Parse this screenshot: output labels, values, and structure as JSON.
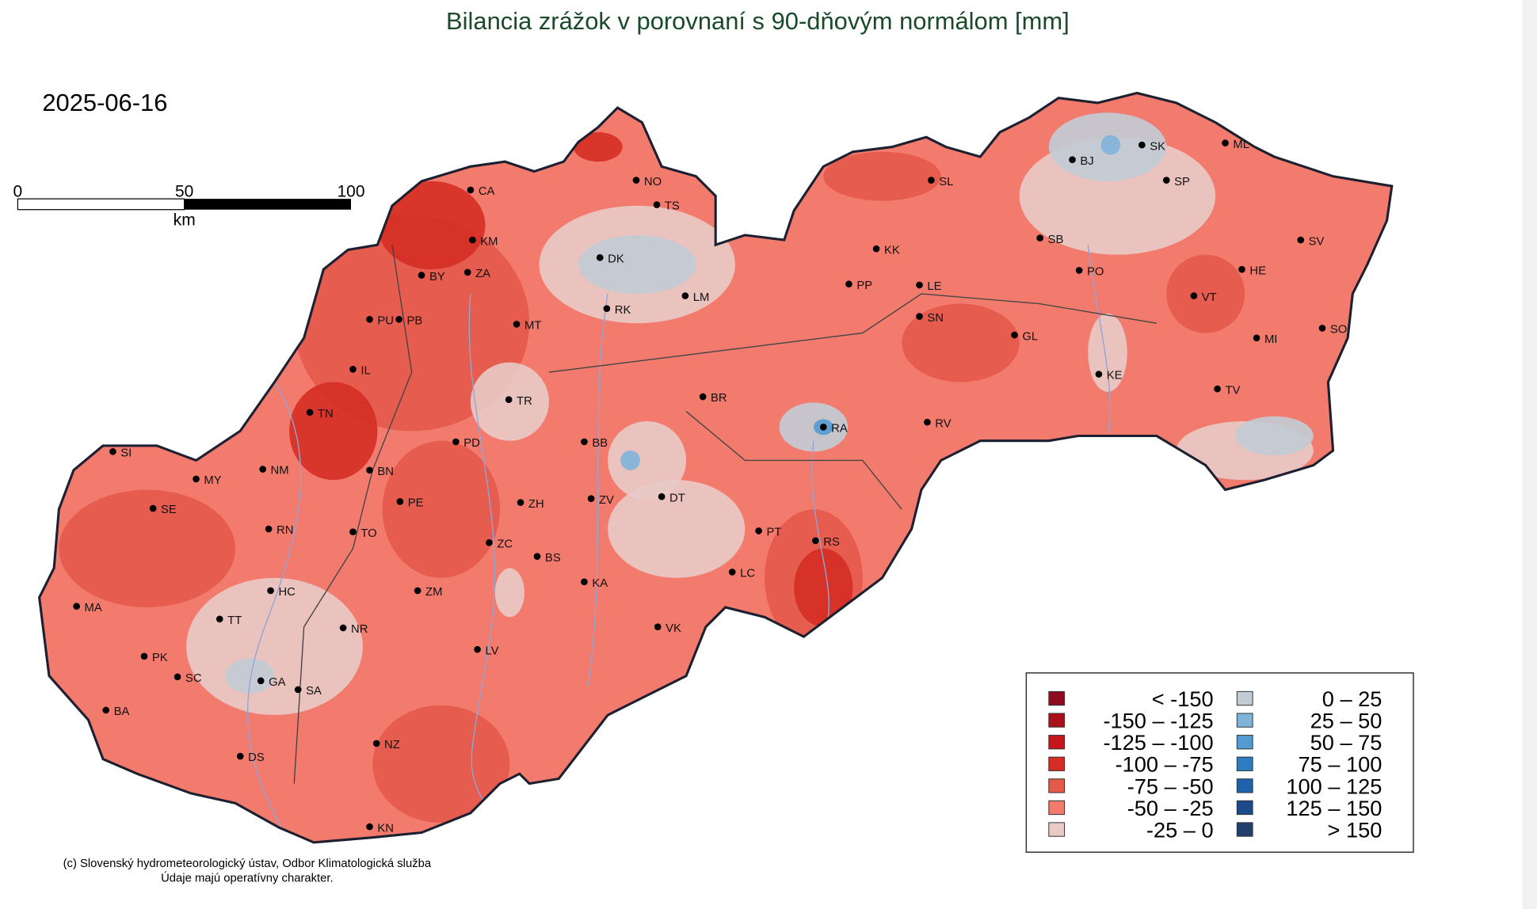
{
  "title": "Bilancia zrážok v porovnaní s 90-dňovým normálom [mm]",
  "date": "2025-06-16",
  "scale_bar": {
    "labels": [
      "0",
      "50",
      "100"
    ],
    "unit": "km"
  },
  "stations": [
    "CA",
    "KM",
    "BY",
    "ZA",
    "PU",
    "PB",
    "MT",
    "IL",
    "TN",
    "PD",
    "BN",
    "NM",
    "MY",
    "SI",
    "SE",
    "PE",
    "RN",
    "TO",
    "HC",
    "TT",
    "MA",
    "NR",
    "PK",
    "SC",
    "GA",
    "SA",
    "BA",
    "DS",
    "NZ",
    "KN",
    "ZM",
    "LV",
    "ZC",
    "BS",
    "KA",
    "VK",
    "ZH",
    "ZV",
    "DT",
    "BB",
    "TR",
    "BR",
    "RK",
    "LM",
    "DK",
    "NO",
    "TS",
    "PT",
    "LC",
    "RS",
    "RA",
    "RV",
    "KK",
    "PP",
    "LE",
    "SN",
    "SL",
    "GL",
    "SB",
    "PO",
    "BJ",
    "SK",
    "SP",
    "ML",
    "HE",
    "SV",
    "VT",
    "MI",
    "SO",
    "KE",
    "TV"
  ],
  "legend": [
    {
      "label": "< -150",
      "color": "#8c0b1f"
    },
    {
      "label": "-150 – -125",
      "color": "#a8101a"
    },
    {
      "label": "-125 – -100",
      "color": "#c4161c"
    },
    {
      "label": "-100 –   -75",
      "color": "#d52d24"
    },
    {
      "label": "-75 –   -50",
      "color": "#e4594a"
    },
    {
      "label": "-50 –   -25",
      "color": "#f27b6d"
    },
    {
      "label": "-25 –     0",
      "color": "#e9cac7"
    },
    {
      "label": "0 –   25",
      "color": "#c2ccd5"
    },
    {
      "label": "25 –   50",
      "color": "#7fb4da"
    },
    {
      "label": "50 –   75",
      "color": "#529cd1"
    },
    {
      "label": "75 – 100",
      "color": "#2c7cc3"
    },
    {
      "label": "100 – 125",
      "color": "#1f62ac"
    },
    {
      "label": "125 – 150",
      "color": "#1b4a8b"
    },
    {
      "label": "> 150",
      "color": "#22406d"
    }
  ],
  "credit": [
    "(c) Slovenský hydrometeorologický ústav, Odbor Klimatologická služba",
    "Údaje majú operatívny charakter."
  ]
}
